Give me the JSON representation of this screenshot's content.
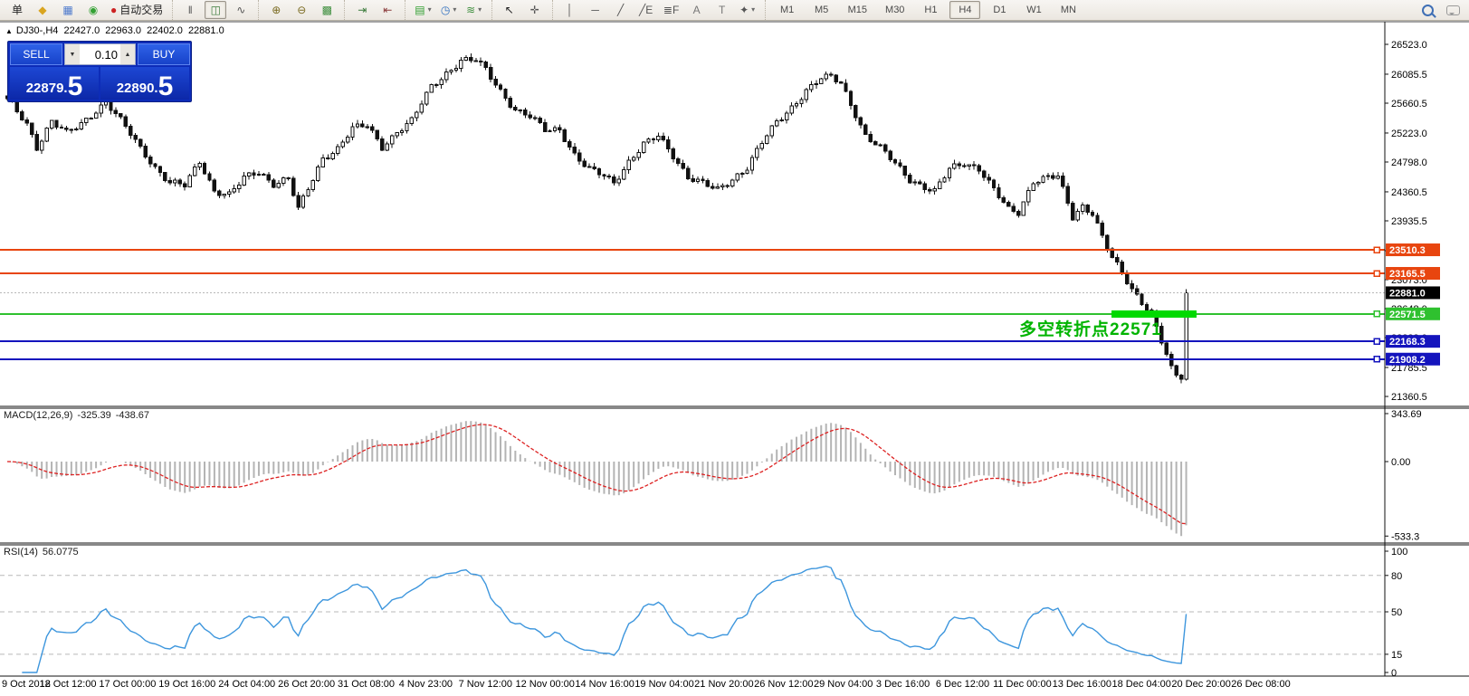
{
  "toolbar": {
    "groups": [
      {
        "name": "file-group",
        "items": [
          {
            "name": "new-order-button",
            "glyph": "单",
            "color": "#222",
            "text": true
          },
          {
            "name": "market-watch-icon",
            "glyph": "◆",
            "color": "#d9a520"
          },
          {
            "name": "data-window-icon",
            "glyph": "▦",
            "color": "#4d79cc"
          },
          {
            "name": "signals-icon",
            "glyph": "◉",
            "color": "#33a133"
          },
          {
            "name": "auto-trading-button",
            "glyph": "●",
            "color": "#cc2222",
            "label": "自动交易"
          }
        ]
      },
      {
        "name": "chart-type-group",
        "items": [
          {
            "name": "bar-chart-icon",
            "glyph": "‖",
            "color": "#555"
          },
          {
            "name": "candlestick-chart-icon",
            "glyph": "◫",
            "color": "#3a7a3a",
            "active": true
          },
          {
            "name": "line-chart-icon",
            "glyph": "∿",
            "color": "#555"
          }
        ]
      },
      {
        "name": "zoom-group",
        "items": [
          {
            "name": "zoom-in-icon",
            "glyph": "⊕",
            "color": "#7a6a20"
          },
          {
            "name": "zoom-out-icon",
            "glyph": "⊖",
            "color": "#7a6a20"
          },
          {
            "name": "tile-windows-icon",
            "glyph": "▩",
            "color": "#3f8f3f"
          }
        ]
      },
      {
        "name": "scroll-group",
        "items": [
          {
            "name": "auto-scroll-icon",
            "glyph": "⇥",
            "color": "#3a7a3a"
          },
          {
            "name": "chart-shift-icon",
            "glyph": "⇤",
            "color": "#8a3a3a"
          }
        ]
      },
      {
        "name": "objects-group",
        "items": [
          {
            "name": "templates-icon",
            "glyph": "▤",
            "color": "#2e9e2e",
            "dropdown": true
          },
          {
            "name": "period-icon",
            "glyph": "◷",
            "color": "#2f6fbf",
            "dropdown": true
          },
          {
            "name": "indicators-icon",
            "glyph": "≋",
            "color": "#3f8f3f",
            "dropdown": true
          }
        ]
      },
      {
        "name": "pointer-group",
        "items": [
          {
            "name": "cursor-icon",
            "glyph": "↖",
            "color": "#222"
          },
          {
            "name": "crosshair-icon",
            "glyph": "✛",
            "color": "#555"
          }
        ]
      },
      {
        "name": "line-tools-group",
        "items": [
          {
            "name": "vertical-line-icon",
            "glyph": "│",
            "color": "#555"
          },
          {
            "name": "horizontal-line-icon",
            "glyph": "─",
            "color": "#555"
          },
          {
            "name": "trendline-icon",
            "glyph": "╱",
            "color": "#555"
          },
          {
            "name": "equidistant-channel-icon",
            "glyph": "╱E",
            "color": "#555"
          },
          {
            "name": "fibonacci-icon",
            "glyph": "≣F",
            "color": "#555"
          },
          {
            "name": "text-icon",
            "glyph": "A",
            "color": "#777"
          },
          {
            "name": "text-label-icon",
            "glyph": "T",
            "color": "#777"
          },
          {
            "name": "arrows-icon",
            "glyph": "✦",
            "color": "#555",
            "dropdown": true
          }
        ]
      }
    ],
    "timeframes": [
      "M1",
      "M5",
      "M15",
      "M30",
      "H1",
      "H4",
      "D1",
      "W1",
      "MN"
    ],
    "active_timeframe": "H4"
  },
  "chart_header": {
    "collapse_icon": "▲",
    "symbol_title": "DJ30-,H4",
    "open": "22427.0",
    "high": "22963.0",
    "low": "22402.0",
    "close": "22881.0"
  },
  "trade_panel": {
    "sell_label": "SELL",
    "buy_label": "BUY",
    "volume": "0.10",
    "sell_price_main": "22879",
    "sell_price_dot": ".",
    "sell_price_big": "5",
    "buy_price_main": "22890",
    "buy_price_dot": ".",
    "buy_price_big": "5"
  },
  "price_axis": {
    "ticks": [
      {
        "label": "26523.0",
        "price": 26523.0
      },
      {
        "label": "26085.5",
        "price": 26085.5
      },
      {
        "label": "25660.5",
        "price": 25660.5
      },
      {
        "label": "25223.0",
        "price": 25223.0
      },
      {
        "label": "24798.0",
        "price": 24798.0
      },
      {
        "label": "24360.5",
        "price": 24360.5
      },
      {
        "label": "23935.5",
        "price": 23935.5
      },
      {
        "label": "23498.0",
        "price": 23498.0
      },
      {
        "label": "23073.0",
        "price": 23073.0
      },
      {
        "label": "22648.0",
        "price": 22648.0
      },
      {
        "label": "22223.0",
        "price": 22223.0
      },
      {
        "label": "21785.5",
        "price": 21785.5
      },
      {
        "label": "21360.5",
        "price": 21360.5
      }
    ],
    "line_labels": [
      {
        "name": "resistance-line-1",
        "label": "23510.3",
        "price": 23510.3,
        "color": "#e8450f",
        "handle": true
      },
      {
        "name": "resistance-line-2",
        "label": "23165.5",
        "price": 23165.5,
        "color": "#e8450f",
        "handle": true
      },
      {
        "name": "current-price",
        "label": "22881.0",
        "price": 22881.0,
        "color": "#000000",
        "dotted": true,
        "handle": false
      },
      {
        "name": "pivot-line",
        "label": "22571.5",
        "price": 22571.5,
        "color": "#2fc12f",
        "handle": true
      },
      {
        "name": "support-line-1",
        "label": "22168.3",
        "price": 22168.3,
        "color": "#1414bd",
        "handle": true
      },
      {
        "name": "support-line-2",
        "label": "21908.2",
        "price": 21908.2,
        "color": "#1414bd",
        "handle": true
      }
    ]
  },
  "annotation": {
    "text": "多空转折点22571",
    "color": "#00b400"
  },
  "macd": {
    "name": "MACD(12,26,9)",
    "value_main": "-325.39",
    "value_signal": "-438.67",
    "ticks": [
      {
        "label": "343.69",
        "v": 343.69
      },
      {
        "label": "0.00",
        "v": 0.0
      },
      {
        "label": "-533.3",
        "v": -533.3
      }
    ],
    "histogram_color": "#b4b4b4",
    "signal_color": "#dd2222"
  },
  "rsi": {
    "name": "RSI(14)",
    "value": "56.0775",
    "ticks": [
      {
        "label": "100",
        "v": 100
      },
      {
        "label": "80",
        "v": 80
      },
      {
        "label": "50",
        "v": 50
      },
      {
        "label": "15",
        "v": 15
      },
      {
        "label": "0",
        "v": 0
      }
    ],
    "levels": [
      80,
      50,
      15
    ],
    "line_color": "#3d96dd"
  },
  "time_axis": [
    "9 Oct 2018",
    "12 Oct 12:00",
    "17 Oct 00:00",
    "19 Oct 16:00",
    "24 Oct 04:00",
    "26 Oct 20:00",
    "31 Oct 08:00",
    "4 Nov 23:00",
    "7 Nov 12:00",
    "12 Nov 00:00",
    "14 Nov 16:00",
    "19 Nov 04:00",
    "21 Nov 20:00",
    "26 Nov 12:00",
    "29 Nov 04:00",
    "3 Dec 16:00",
    "6 Dec 12:00",
    "11 Dec 00:00",
    "13 Dec 16:00",
    "18 Dec 04:00",
    "20 Dec 20:00",
    "26 Dec 08:00"
  ],
  "chart": {
    "type": "candlestick",
    "symbol": "DJ30-",
    "period": "H4",
    "candles": 240,
    "anchors": [
      [
        0,
        25710
      ],
      [
        4,
        25350
      ],
      [
        6,
        25020
      ],
      [
        9,
        25400
      ],
      [
        12,
        25220
      ],
      [
        15,
        25350
      ],
      [
        20,
        25690
      ],
      [
        23,
        25410
      ],
      [
        27,
        25000
      ],
      [
        30,
        24720
      ],
      [
        33,
        24500
      ],
      [
        36,
        24450
      ],
      [
        39,
        24800
      ],
      [
        42,
        24380
      ],
      [
        45,
        24320
      ],
      [
        48,
        24560
      ],
      [
        51,
        24650
      ],
      [
        54,
        24480
      ],
      [
        57,
        24560
      ],
      [
        59,
        24100
      ],
      [
        62,
        24550
      ],
      [
        64,
        24850
      ],
      [
        67,
        25000
      ],
      [
        70,
        25290
      ],
      [
        73,
        25330
      ],
      [
        76,
        25020
      ],
      [
        79,
        25240
      ],
      [
        82,
        25400
      ],
      [
        86,
        25910
      ],
      [
        89,
        26100
      ],
      [
        92,
        26280
      ],
      [
        95,
        26290
      ],
      [
        97,
        26150
      ],
      [
        100,
        25845
      ],
      [
        103,
        25560
      ],
      [
        106,
        25460
      ],
      [
        109,
        25270
      ],
      [
        112,
        25280
      ],
      [
        115,
        24900
      ],
      [
        118,
        24680
      ],
      [
        121,
        24600
      ],
      [
        123,
        24500
      ],
      [
        126,
        24800
      ],
      [
        129,
        25050
      ],
      [
        132,
        25180
      ],
      [
        135,
        24900
      ],
      [
        138,
        24580
      ],
      [
        141,
        24480
      ],
      [
        144,
        24385
      ],
      [
        147,
        24550
      ],
      [
        150,
        24720
      ],
      [
        153,
        25080
      ],
      [
        156,
        25380
      ],
      [
        159,
        25600
      ],
      [
        162,
        25845
      ],
      [
        165,
        26020
      ],
      [
        167,
        26045
      ],
      [
        169,
        25960
      ],
      [
        172,
        25500
      ],
      [
        174,
        25180
      ],
      [
        177,
        25000
      ],
      [
        180,
        24780
      ],
      [
        183,
        24550
      ],
      [
        186,
        24420
      ],
      [
        188,
        24360
      ],
      [
        191,
        24700
      ],
      [
        194,
        24790
      ],
      [
        197,
        24700
      ],
      [
        200,
        24390
      ],
      [
        203,
        24100
      ],
      [
        205,
        24060
      ],
      [
        208,
        24520
      ],
      [
        211,
        24570
      ],
      [
        213,
        24580
      ],
      [
        216,
        23990
      ],
      [
        218,
        24150
      ],
      [
        220,
        24060
      ],
      [
        222,
        23700
      ],
      [
        224,
        23390
      ],
      [
        226,
        23160
      ],
      [
        228,
        22930
      ],
      [
        230,
        22750
      ],
      [
        232,
        22600
      ],
      [
        234,
        22150
      ],
      [
        236,
        21800
      ],
      [
        237,
        21670
      ],
      [
        238,
        21620
      ],
      [
        239,
        22881
      ]
    ]
  }
}
